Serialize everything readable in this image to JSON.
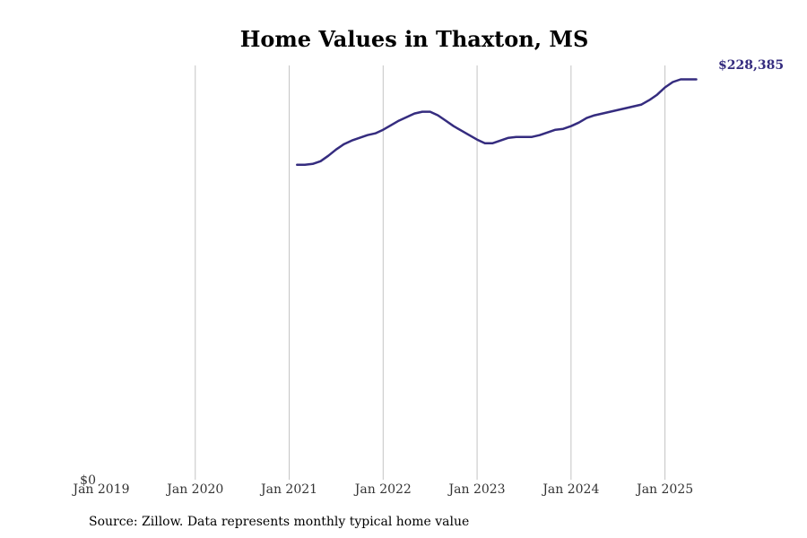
{
  "chart_data": {
    "type": "line",
    "title": "Home Values in Thaxton, MS",
    "xlabel": "",
    "ylabel": "",
    "x_ticks": [
      "Jan 2019",
      "Jan 2020",
      "Jan 2021",
      "Jan 2022",
      "Jan 2023",
      "Jan 2024",
      "Jan 2025"
    ],
    "y_ticks": [
      "$0"
    ],
    "xlim": [
      "2019-01",
      "2025-07"
    ],
    "ylim": [
      0,
      228385
    ],
    "grid": "vertical",
    "line_color": "#352c7f",
    "end_label": "$228,385",
    "series": [
      {
        "x": [
          "2021-02",
          "2021-03",
          "2021-04",
          "2021-05",
          "2021-06",
          "2021-07",
          "2021-08",
          "2021-09",
          "2021-10",
          "2021-11",
          "2021-12",
          "2022-01",
          "2022-02",
          "2022-03",
          "2022-04",
          "2022-05",
          "2022-06",
          "2022-07",
          "2022-08",
          "2022-09",
          "2022-10",
          "2022-11",
          "2022-12",
          "2023-01",
          "2023-02",
          "2023-03",
          "2023-04",
          "2023-05",
          "2023-06",
          "2023-07",
          "2023-08",
          "2023-09",
          "2023-10",
          "2023-11",
          "2023-12",
          "2024-01",
          "2024-02",
          "2024-03",
          "2024-04",
          "2024-05",
          "2024-06",
          "2024-07",
          "2024-08",
          "2024-09",
          "2024-10",
          "2024-11",
          "2024-12",
          "2025-01",
          "2025-02",
          "2025-03",
          "2025-04",
          "2025-05"
        ],
        "values": [
          175140,
          175140,
          175640,
          177140,
          180140,
          183640,
          186640,
          188640,
          190140,
          191640,
          192640,
          194640,
          197140,
          199640,
          201640,
          203640,
          204640,
          204640,
          202640,
          199640,
          196640,
          194140,
          191640,
          189140,
          187140,
          187140,
          188640,
          190140,
          190640,
          190640,
          190640,
          191640,
          193140,
          194640,
          195140,
          196640,
          198640,
          201140,
          202640,
          203640,
          204640,
          205640,
          206640,
          207640,
          208640,
          211140,
          214140,
          218140,
          221140,
          222640,
          222640,
          222640
        ]
      }
    ]
  },
  "source_text": "Source: Zillow. Data represents monthly typical home value"
}
